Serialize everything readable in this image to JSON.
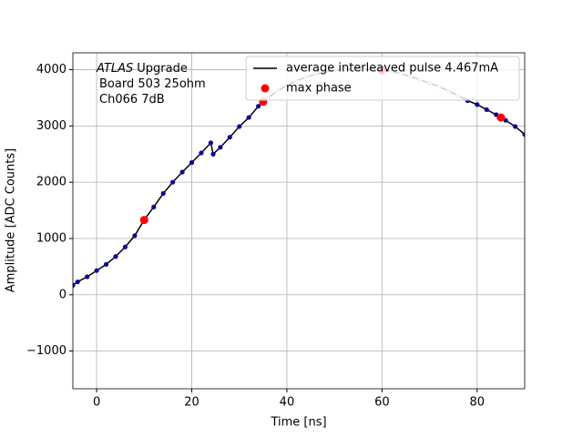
{
  "chart_data": {
    "type": "scatter",
    "xlabel": "Time [ns]",
    "ylabel": "Amplitude [ADC Counts]",
    "xlim": [
      -5,
      90
    ],
    "ylim": [
      -1670,
      4300
    ],
    "xticks": [
      0,
      20,
      40,
      60,
      80
    ],
    "yticks": [
      {
        "value": -1000,
        "label": "−1000"
      },
      0,
      1000,
      2000,
      3000,
      4000
    ],
    "grid": true,
    "legend": "upper right",
    "annotation_italic": "ATLAS",
    "annotation_lines": [
      "Upgrade",
      "Board 503 25ohm",
      "Ch066 7dB"
    ],
    "line": {
      "name": "average interleaved pulse 4.467mA",
      "color": "#000000",
      "x": [
        -5,
        -4,
        -2,
        0,
        2,
        4,
        6,
        8,
        10,
        12,
        14,
        16,
        18,
        20,
        22,
        24,
        24.5,
        26,
        28,
        30,
        32,
        34,
        36,
        38,
        40,
        42,
        44,
        46,
        48,
        50,
        52,
        54,
        56,
        58,
        60,
        62,
        64,
        66,
        68,
        70,
        72,
        74,
        76,
        78,
        80,
        82,
        84,
        86,
        88,
        90
      ],
      "values": [
        170,
        230,
        320,
        430,
        540,
        680,
        850,
        1050,
        1330,
        1560,
        1800,
        2000,
        2180,
        2350,
        2520,
        2700,
        2500,
        2620,
        2800,
        2990,
        3150,
        3350,
        3500,
        3620,
        3720,
        3800,
        3870,
        3920,
        3960,
        3985,
        4000,
        4005,
        4005,
        4000,
        3990,
        3970,
        3930,
        3880,
        3820,
        3760,
        3700,
        3620,
        3540,
        3450,
        3380,
        3290,
        3200,
        3100,
        2990,
        2850
      ]
    },
    "series": [
      {
        "color": "#0a0a9a",
        "x": [
          -5,
          -4,
          -2,
          0,
          2,
          4,
          6,
          8,
          10,
          12,
          14,
          16,
          18,
          20,
          22,
          24,
          24.5,
          26,
          28,
          30,
          32,
          34,
          78,
          80,
          82,
          84,
          86,
          88,
          90
        ],
        "values": [
          170,
          230,
          320,
          430,
          540,
          680,
          850,
          1050,
          1330,
          1560,
          1800,
          2000,
          2180,
          2350,
          2520,
          2700,
          2500,
          2620,
          2800,
          2990,
          3150,
          3350,
          3450,
          3380,
          3290,
          3200,
          3100,
          2990,
          2850
        ]
      },
      {
        "color": "#c8c8ee",
        "x": [
          36,
          38,
          40,
          42,
          44,
          46,
          48,
          50,
          52,
          54,
          56,
          58,
          60,
          62,
          64,
          66,
          68,
          70,
          72,
          74,
          76
        ],
        "values": [
          3500,
          3620,
          3720,
          3800,
          3870,
          3920,
          3960,
          3985,
          4000,
          4005,
          4005,
          4000,
          3990,
          3970,
          3930,
          3880,
          3820,
          3760,
          3700,
          3620,
          3540
        ]
      },
      {
        "name": "max phase",
        "color": "#ff0000",
        "x": [
          10,
          35,
          60,
          85
        ],
        "values": [
          1330,
          3430,
          3990,
          3150
        ]
      }
    ]
  }
}
